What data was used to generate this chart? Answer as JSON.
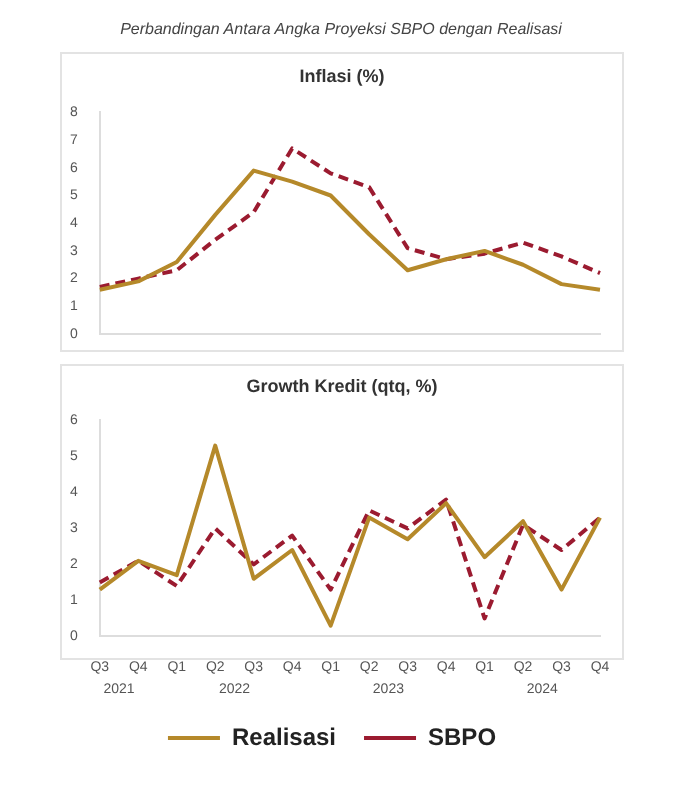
{
  "chart_data": [
    {
      "type": "line",
      "title": "Perbandingan Antara Angka Proyeksi SBPO dengan Realisasi",
      "subtitle": "Inflasi (%)",
      "tick_labels": "y",
      "categories": [
        null,
        null,
        null,
        null,
        null,
        null,
        null,
        null,
        null,
        null,
        null,
        null,
        null,
        null
      ],
      "ylim": [
        0,
        8
      ],
      "yticks": [
        0,
        1,
        2,
        3,
        4,
        5,
        6,
        7,
        8
      ],
      "series": [
        {
          "color": "#b5892a",
          "values": [
            1.6,
            1.9,
            2.6,
            4.3,
            5.9,
            5.5,
            5.0,
            3.6,
            2.3,
            2.7,
            3.0,
            2.5,
            1.8,
            1.6
          ]
        },
        {
          "color": "#9b1b30",
          "line_style": "dashed",
          "values": [
            1.7,
            2.0,
            2.3,
            3.4,
            4.4,
            6.7,
            5.8,
            5.3,
            3.1,
            2.7,
            2.9,
            3.3,
            2.8,
            2.2
          ]
        }
      ]
    },
    {
      "type": "line",
      "title": "Growth Kredit (qtq, %)",
      "legend": "bottom",
      "categories": [
        "Q3",
        "Q4",
        "Q1",
        "Q2",
        "Q3",
        "Q4",
        "Q1",
        "Q2",
        "Q3",
        "Q4",
        "Q1",
        "Q2",
        "Q3",
        "Q4"
      ],
      "annotations": [
        "2021",
        "2022",
        "2023",
        "2024"
      ],
      "ylim": [
        0,
        6
      ],
      "yticks": [
        0,
        1,
        2,
        3,
        4,
        5,
        6
      ],
      "series": [
        {
          "name": "Realisasi",
          "color": "#b5892a",
          "values": [
            1.3,
            2.1,
            1.7,
            5.3,
            1.6,
            2.4,
            0.3,
            3.3,
            2.7,
            3.7,
            2.2,
            3.2,
            1.3,
            3.3
          ]
        },
        {
          "name": "SBPO",
          "color": "#9b1b30",
          "line_style": "dashed",
          "values": [
            1.5,
            2.1,
            1.4,
            3.0,
            2.0,
            2.8,
            1.3,
            3.5,
            3.0,
            3.8,
            0.5,
            3.1,
            2.4,
            3.3
          ]
        }
      ]
    }
  ]
}
